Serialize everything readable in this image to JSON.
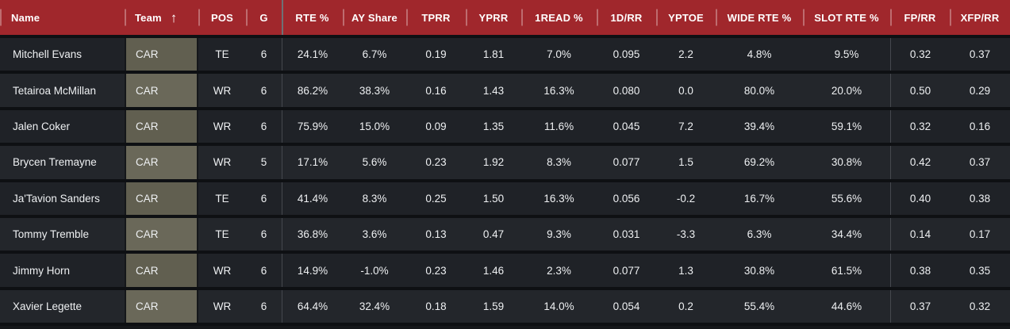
{
  "colors": {
    "header_bg": "#a0272c",
    "header_text": "#ffffff",
    "row_bg": "#1f2227",
    "row_bg_alt": "#23262b",
    "team_cell_bg": "#5d5c4d",
    "row_separator": "#0e1013",
    "body_text": "#eef0f2",
    "column_divider": "#45484e"
  },
  "sort": {
    "column": "team",
    "direction": "ascending",
    "icon": "↑"
  },
  "table": {
    "columns": [
      {
        "key": "name",
        "label": "Name"
      },
      {
        "key": "team",
        "label": "Team",
        "sorted": "asc"
      },
      {
        "key": "pos",
        "label": "POS"
      },
      {
        "key": "g",
        "label": "G"
      },
      {
        "key": "rte_pct",
        "label": "RTE %"
      },
      {
        "key": "ay_share",
        "label": "AY Share"
      },
      {
        "key": "tprr",
        "label": "TPRR"
      },
      {
        "key": "yprr",
        "label": "YPRR"
      },
      {
        "key": "read1_pct",
        "label": "1READ %"
      },
      {
        "key": "d1_rr",
        "label": "1D/RR"
      },
      {
        "key": "yptoe",
        "label": "YPTOE"
      },
      {
        "key": "wide_rte_pct",
        "label": "WIDE RTE %"
      },
      {
        "key": "slot_rte_pct",
        "label": "SLOT RTE %"
      },
      {
        "key": "fp_rr",
        "label": "FP/RR"
      },
      {
        "key": "xfp_rr",
        "label": "XFP/RR"
      }
    ],
    "rows": [
      [
        "Mitchell Evans",
        "CAR",
        "TE",
        "6",
        "24.1%",
        "6.7%",
        "0.19",
        "1.81",
        "7.0%",
        "0.095",
        "2.2",
        "4.8%",
        "9.5%",
        "0.32",
        "0.37"
      ],
      [
        "Tetairoa McMillan",
        "CAR",
        "WR",
        "6",
        "86.2%",
        "38.3%",
        "0.16",
        "1.43",
        "16.3%",
        "0.080",
        "0.0",
        "80.0%",
        "20.0%",
        "0.50",
        "0.29"
      ],
      [
        "Jalen Coker",
        "CAR",
        "WR",
        "6",
        "75.9%",
        "15.0%",
        "0.09",
        "1.35",
        "11.6%",
        "0.045",
        "7.2",
        "39.4%",
        "59.1%",
        "0.32",
        "0.16"
      ],
      [
        "Brycen Tremayne",
        "CAR",
        "WR",
        "5",
        "17.1%",
        "5.6%",
        "0.23",
        "1.92",
        "8.3%",
        "0.077",
        "1.5",
        "69.2%",
        "30.8%",
        "0.42",
        "0.37"
      ],
      [
        "Ja'Tavion Sanders",
        "CAR",
        "TE",
        "6",
        "41.4%",
        "8.3%",
        "0.25",
        "1.50",
        "16.3%",
        "0.056",
        "-0.2",
        "16.7%",
        "55.6%",
        "0.40",
        "0.38"
      ],
      [
        "Tommy Tremble",
        "CAR",
        "TE",
        "6",
        "36.8%",
        "3.6%",
        "0.13",
        "0.47",
        "9.3%",
        "0.031",
        "-3.3",
        "6.3%",
        "34.4%",
        "0.14",
        "0.17"
      ],
      [
        "Jimmy Horn",
        "CAR",
        "WR",
        "6",
        "14.9%",
        "-1.0%",
        "0.23",
        "1.46",
        "2.3%",
        "0.077",
        "1.3",
        "30.8%",
        "61.5%",
        "0.38",
        "0.35"
      ],
      [
        "Xavier Legette",
        "CAR",
        "WR",
        "6",
        "64.4%",
        "32.4%",
        "0.18",
        "1.59",
        "14.0%",
        "0.054",
        "0.2",
        "55.4%",
        "44.6%",
        "0.37",
        "0.32"
      ]
    ]
  }
}
